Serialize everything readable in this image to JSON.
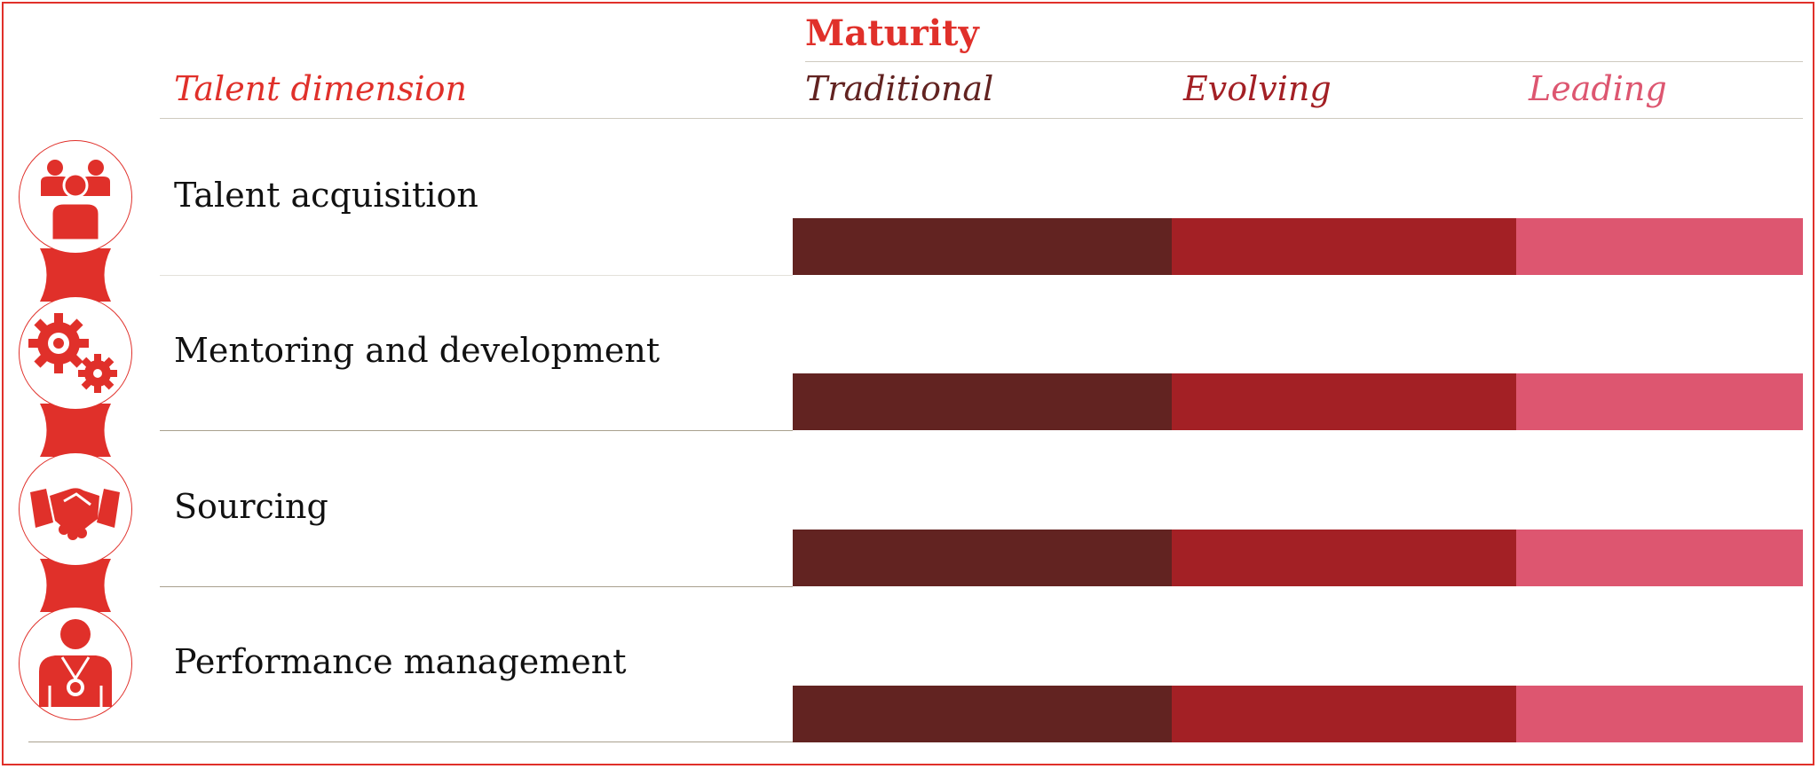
{
  "header": {
    "maturity_title": "Maturity",
    "dimension_label": "Talent dimension",
    "levels": [
      {
        "label": "Traditional",
        "color": "#622321"
      },
      {
        "label": "Evolving",
        "color": "#a32025"
      },
      {
        "label": "Leading",
        "color": "#dd5670"
      }
    ]
  },
  "dimensions": [
    {
      "label": "Talent acquisition",
      "icon": "team-people-icon"
    },
    {
      "label": "Mentoring and development",
      "icon": "gears-icon"
    },
    {
      "label": "Sourcing",
      "icon": "handshake-icon"
    },
    {
      "label": "Performance management",
      "icon": "medal-person-icon"
    }
  ],
  "colors": {
    "accent": "#e0302a",
    "traditional": "#622321",
    "evolving": "#a32025",
    "leading": "#dd5670",
    "rule": "#cfcabf"
  }
}
